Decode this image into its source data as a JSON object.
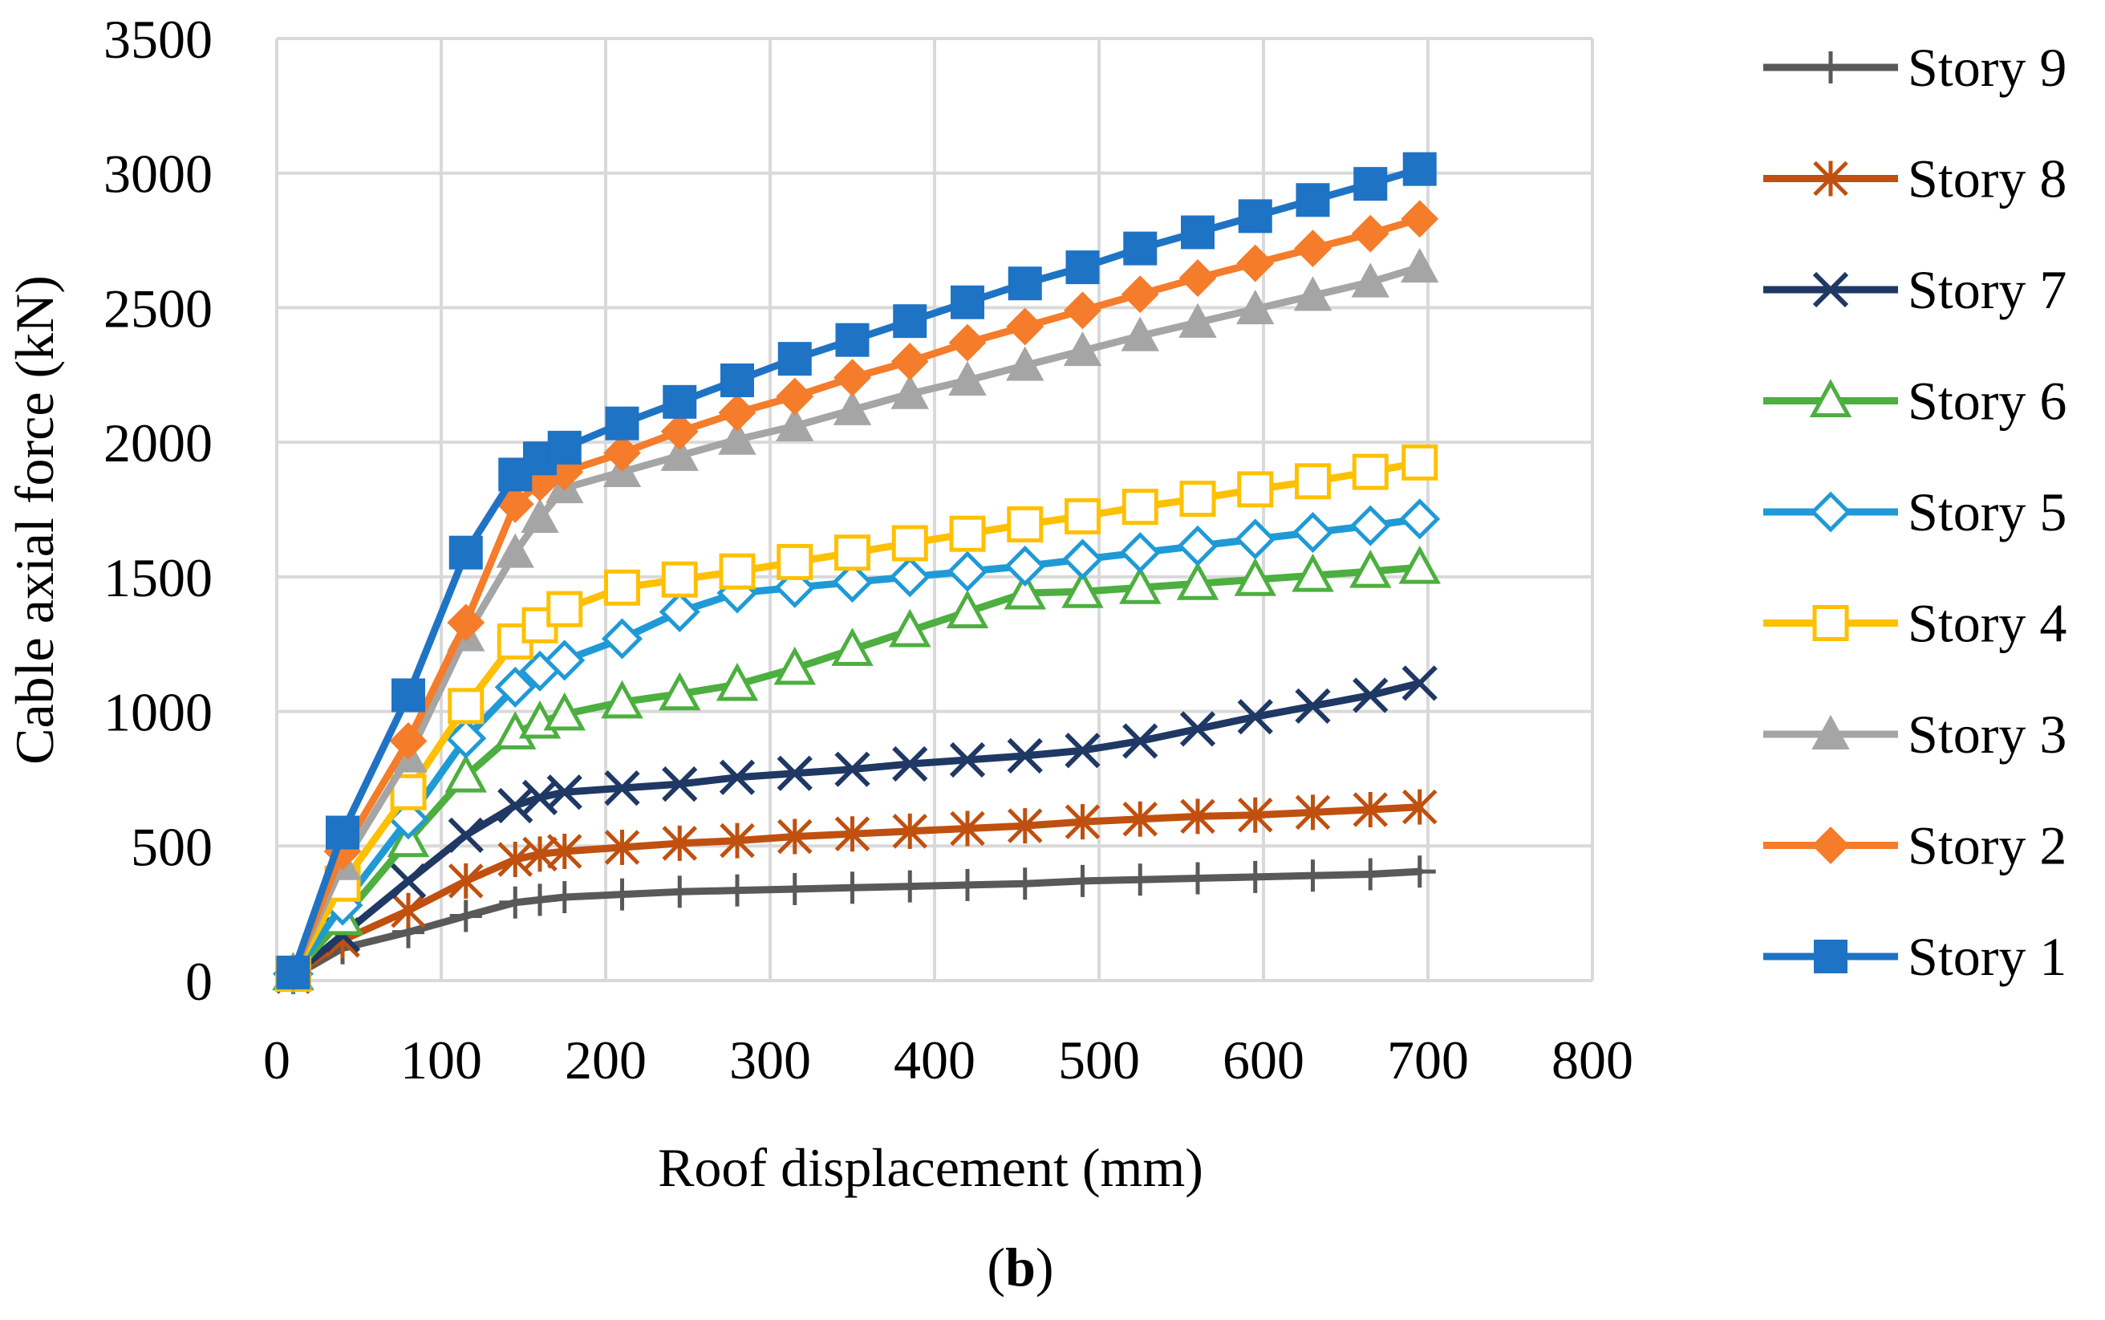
{
  "chart_data": {
    "type": "line",
    "title": "",
    "xlabel": "Roof displacement (mm)",
    "ylabel": "Cable axial force (kN)",
    "xlim": [
      0,
      800
    ],
    "ylim": [
      0,
      3500
    ],
    "xticks": [
      0,
      100,
      200,
      300,
      400,
      500,
      600,
      700,
      800
    ],
    "yticks": [
      0,
      500,
      1000,
      1500,
      2000,
      2500,
      3000,
      3500
    ],
    "xtick_labels": [
      "0",
      "100",
      "200",
      "300",
      "400",
      "500",
      "600",
      "700",
      "800"
    ],
    "ytick_labels": [
      "0",
      "500",
      "1000",
      "1500",
      "2000",
      "2500",
      "3000",
      "3500"
    ],
    "grid": true,
    "legend_position": "right",
    "series": [
      {
        "name": "Story 9",
        "color": "#595959",
        "marker": "plus",
        "x": [
          10,
          40,
          80,
          115,
          145,
          160,
          175,
          210,
          245,
          280,
          315,
          350,
          385,
          420,
          455,
          490,
          525,
          560,
          595,
          630,
          665,
          695
        ],
        "y": [
          15,
          120,
          180,
          240,
          290,
          300,
          310,
          320,
          330,
          335,
          340,
          345,
          350,
          355,
          360,
          370,
          375,
          380,
          385,
          390,
          395,
          405
        ]
      },
      {
        "name": "Story 8",
        "color": "#C0500F",
        "marker": "asterisk",
        "x": [
          10,
          40,
          80,
          115,
          145,
          160,
          175,
          210,
          245,
          280,
          315,
          350,
          385,
          420,
          455,
          490,
          525,
          560,
          595,
          630,
          665,
          695
        ],
        "y": [
          15,
          150,
          260,
          370,
          450,
          470,
          480,
          495,
          510,
          520,
          535,
          545,
          555,
          565,
          575,
          590,
          600,
          610,
          615,
          625,
          635,
          645
        ]
      },
      {
        "name": "Story 7",
        "color": "#1F3864",
        "marker": "x",
        "x": [
          10,
          40,
          80,
          115,
          145,
          160,
          175,
          210,
          245,
          280,
          315,
          350,
          385,
          420,
          455,
          490,
          525,
          560,
          595,
          630,
          665,
          695
        ],
        "y": [
          20,
          170,
          370,
          540,
          650,
          680,
          700,
          715,
          730,
          755,
          770,
          785,
          805,
          820,
          835,
          855,
          890,
          935,
          980,
          1020,
          1060,
          1105
        ]
      },
      {
        "name": "Story 6",
        "color": "#4CAF3F",
        "marker": "triangle-open",
        "x": [
          10,
          40,
          80,
          115,
          145,
          160,
          175,
          210,
          245,
          280,
          315,
          350,
          385,
          420,
          455,
          490,
          525,
          560,
          595,
          630,
          665,
          695
        ],
        "y": [
          25,
          230,
          520,
          760,
          920,
          960,
          990,
          1035,
          1065,
          1100,
          1160,
          1230,
          1300,
          1370,
          1440,
          1445,
          1460,
          1475,
          1490,
          1505,
          1520,
          1535
        ]
      },
      {
        "name": "Story 5",
        "color": "#1F9AD6",
        "marker": "diamond-open",
        "x": [
          10,
          40,
          80,
          115,
          145,
          160,
          175,
          210,
          245,
          280,
          315,
          350,
          385,
          420,
          455,
          490,
          525,
          560,
          595,
          630,
          665,
          695
        ],
        "y": [
          25,
          280,
          600,
          900,
          1090,
          1150,
          1190,
          1270,
          1370,
          1440,
          1460,
          1480,
          1500,
          1520,
          1540,
          1565,
          1590,
          1615,
          1640,
          1665,
          1690,
          1715
        ]
      },
      {
        "name": "Story 4",
        "color": "#FFC000",
        "marker": "square-open",
        "x": [
          10,
          40,
          80,
          115,
          145,
          160,
          175,
          210,
          245,
          280,
          315,
          350,
          385,
          420,
          455,
          490,
          525,
          560,
          595,
          630,
          665,
          695
        ],
        "y": [
          25,
          360,
          700,
          1020,
          1260,
          1320,
          1380,
          1460,
          1490,
          1520,
          1555,
          1590,
          1625,
          1660,
          1695,
          1725,
          1760,
          1790,
          1825,
          1855,
          1890,
          1925
        ]
      },
      {
        "name": "Story 3",
        "color": "#A5A5A5",
        "marker": "triangle",
        "x": [
          10,
          40,
          80,
          115,
          145,
          160,
          175,
          210,
          245,
          280,
          315,
          350,
          385,
          420,
          455,
          490,
          525,
          560,
          595,
          630,
          665,
          695
        ],
        "y": [
          30,
          430,
          830,
          1280,
          1590,
          1720,
          1830,
          1890,
          1950,
          2010,
          2060,
          2120,
          2180,
          2230,
          2285,
          2340,
          2395,
          2445,
          2495,
          2545,
          2595,
          2650
        ]
      },
      {
        "name": "Story 2",
        "color": "#F47C2A",
        "marker": "diamond",
        "x": [
          10,
          40,
          80,
          115,
          145,
          160,
          175,
          210,
          245,
          280,
          315,
          350,
          385,
          420,
          455,
          490,
          525,
          560,
          595,
          630,
          665,
          695
        ],
        "y": [
          30,
          480,
          890,
          1330,
          1770,
          1850,
          1890,
          1960,
          2040,
          2110,
          2170,
          2240,
          2300,
          2370,
          2430,
          2490,
          2550,
          2610,
          2665,
          2720,
          2775,
          2830
        ]
      },
      {
        "name": "Story 1",
        "color": "#1F73C4",
        "marker": "square",
        "x": [
          10,
          40,
          80,
          115,
          145,
          160,
          175,
          210,
          245,
          280,
          315,
          350,
          385,
          420,
          455,
          490,
          525,
          560,
          595,
          630,
          665,
          695
        ],
        "y": [
          30,
          550,
          1060,
          1590,
          1880,
          1940,
          1980,
          2070,
          2150,
          2230,
          2310,
          2380,
          2450,
          2520,
          2590,
          2650,
          2720,
          2780,
          2840,
          2900,
          2960,
          3015
        ]
      }
    ],
    "legend_order": [
      "Story 9",
      "Story 8",
      "Story 7",
      "Story 6",
      "Story 5",
      "Story 4",
      "Story 3",
      "Story 2",
      "Story 1"
    ],
    "caption_open": "(",
    "caption_bold": "b",
    "caption_close": ")"
  }
}
